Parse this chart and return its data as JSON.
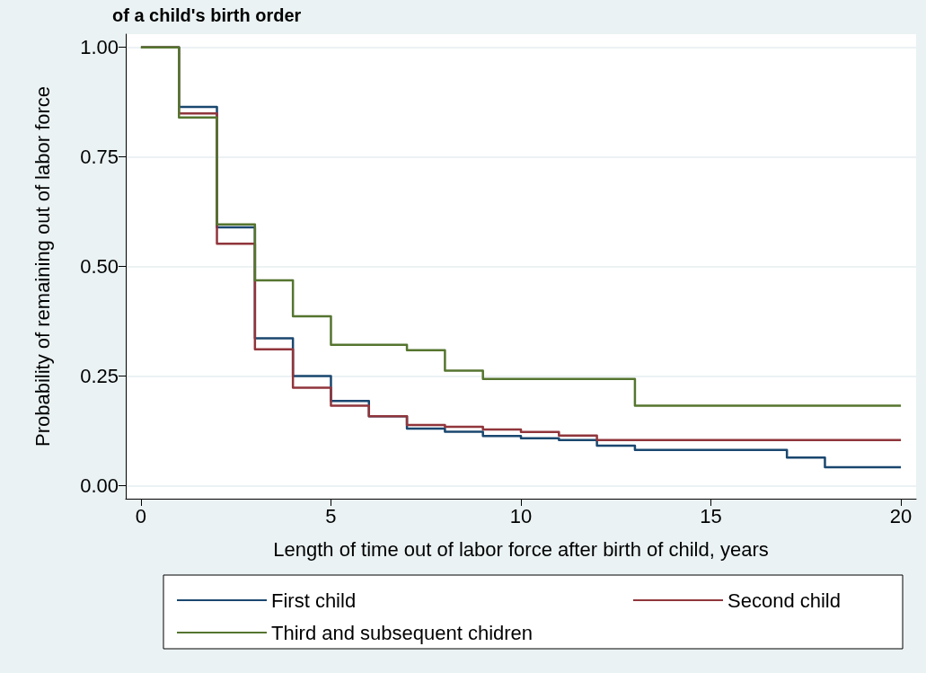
{
  "chart_data": {
    "type": "step",
    "title": "of a child's birth order",
    "xlabel": "Length of time out of labor force after birth of child, years",
    "ylabel": "Probability of remaining out of labor force",
    "x": [
      0,
      1,
      2,
      3,
      4,
      5,
      6,
      7,
      8,
      9,
      10,
      11,
      12,
      13,
      14,
      15,
      16,
      17,
      18,
      19,
      20
    ],
    "series": [
      {
        "name": "First child",
        "color": "#1a476f",
        "values": [
          1,
          0.864,
          0.589,
          0.336,
          0.25,
          0.193,
          0.158,
          0.13,
          0.123,
          0.113,
          0.108,
          0.104,
          0.091,
          0.081,
          0.081,
          0.081,
          0.081,
          0.064,
          0.042,
          0.042,
          0.042
        ]
      },
      {
        "name": "Second child",
        "color": "#90353b",
        "values": [
          1,
          0.849,
          0.552,
          0.311,
          0.223,
          0.182,
          0.158,
          0.138,
          0.134,
          0.128,
          0.122,
          0.114,
          0.104,
          0.104,
          0.104,
          0.104,
          0.104,
          0.104,
          0.104,
          0.104,
          0.104
        ]
      },
      {
        "name": "Third and subsequent chidren",
        "color": "#55752f",
        "values": [
          1,
          0.84,
          0.596,
          0.468,
          0.386,
          0.321,
          0.321,
          0.309,
          0.262,
          0.243,
          0.243,
          0.243,
          0.243,
          0.182,
          0.182,
          0.182,
          0.182,
          0.182,
          0.182,
          0.182,
          0.182
        ]
      }
    ],
    "xlim": [
      -0.4,
      20.4
    ],
    "xticks": [
      0,
      5,
      10,
      15,
      20
    ],
    "ylim": [
      -0.03,
      1.03
    ],
    "yticks": [
      {
        "value": 0,
        "label": "0.00"
      },
      {
        "value": 0.25,
        "label": "0.25"
      },
      {
        "value": 0.5,
        "label": "0.50"
      },
      {
        "value": 0.75,
        "label": "0.75"
      },
      {
        "value": 1,
        "label": "1.00"
      }
    ],
    "grid": "y",
    "legend": "bottom",
    "marker": "none",
    "line_style": "solid"
  }
}
